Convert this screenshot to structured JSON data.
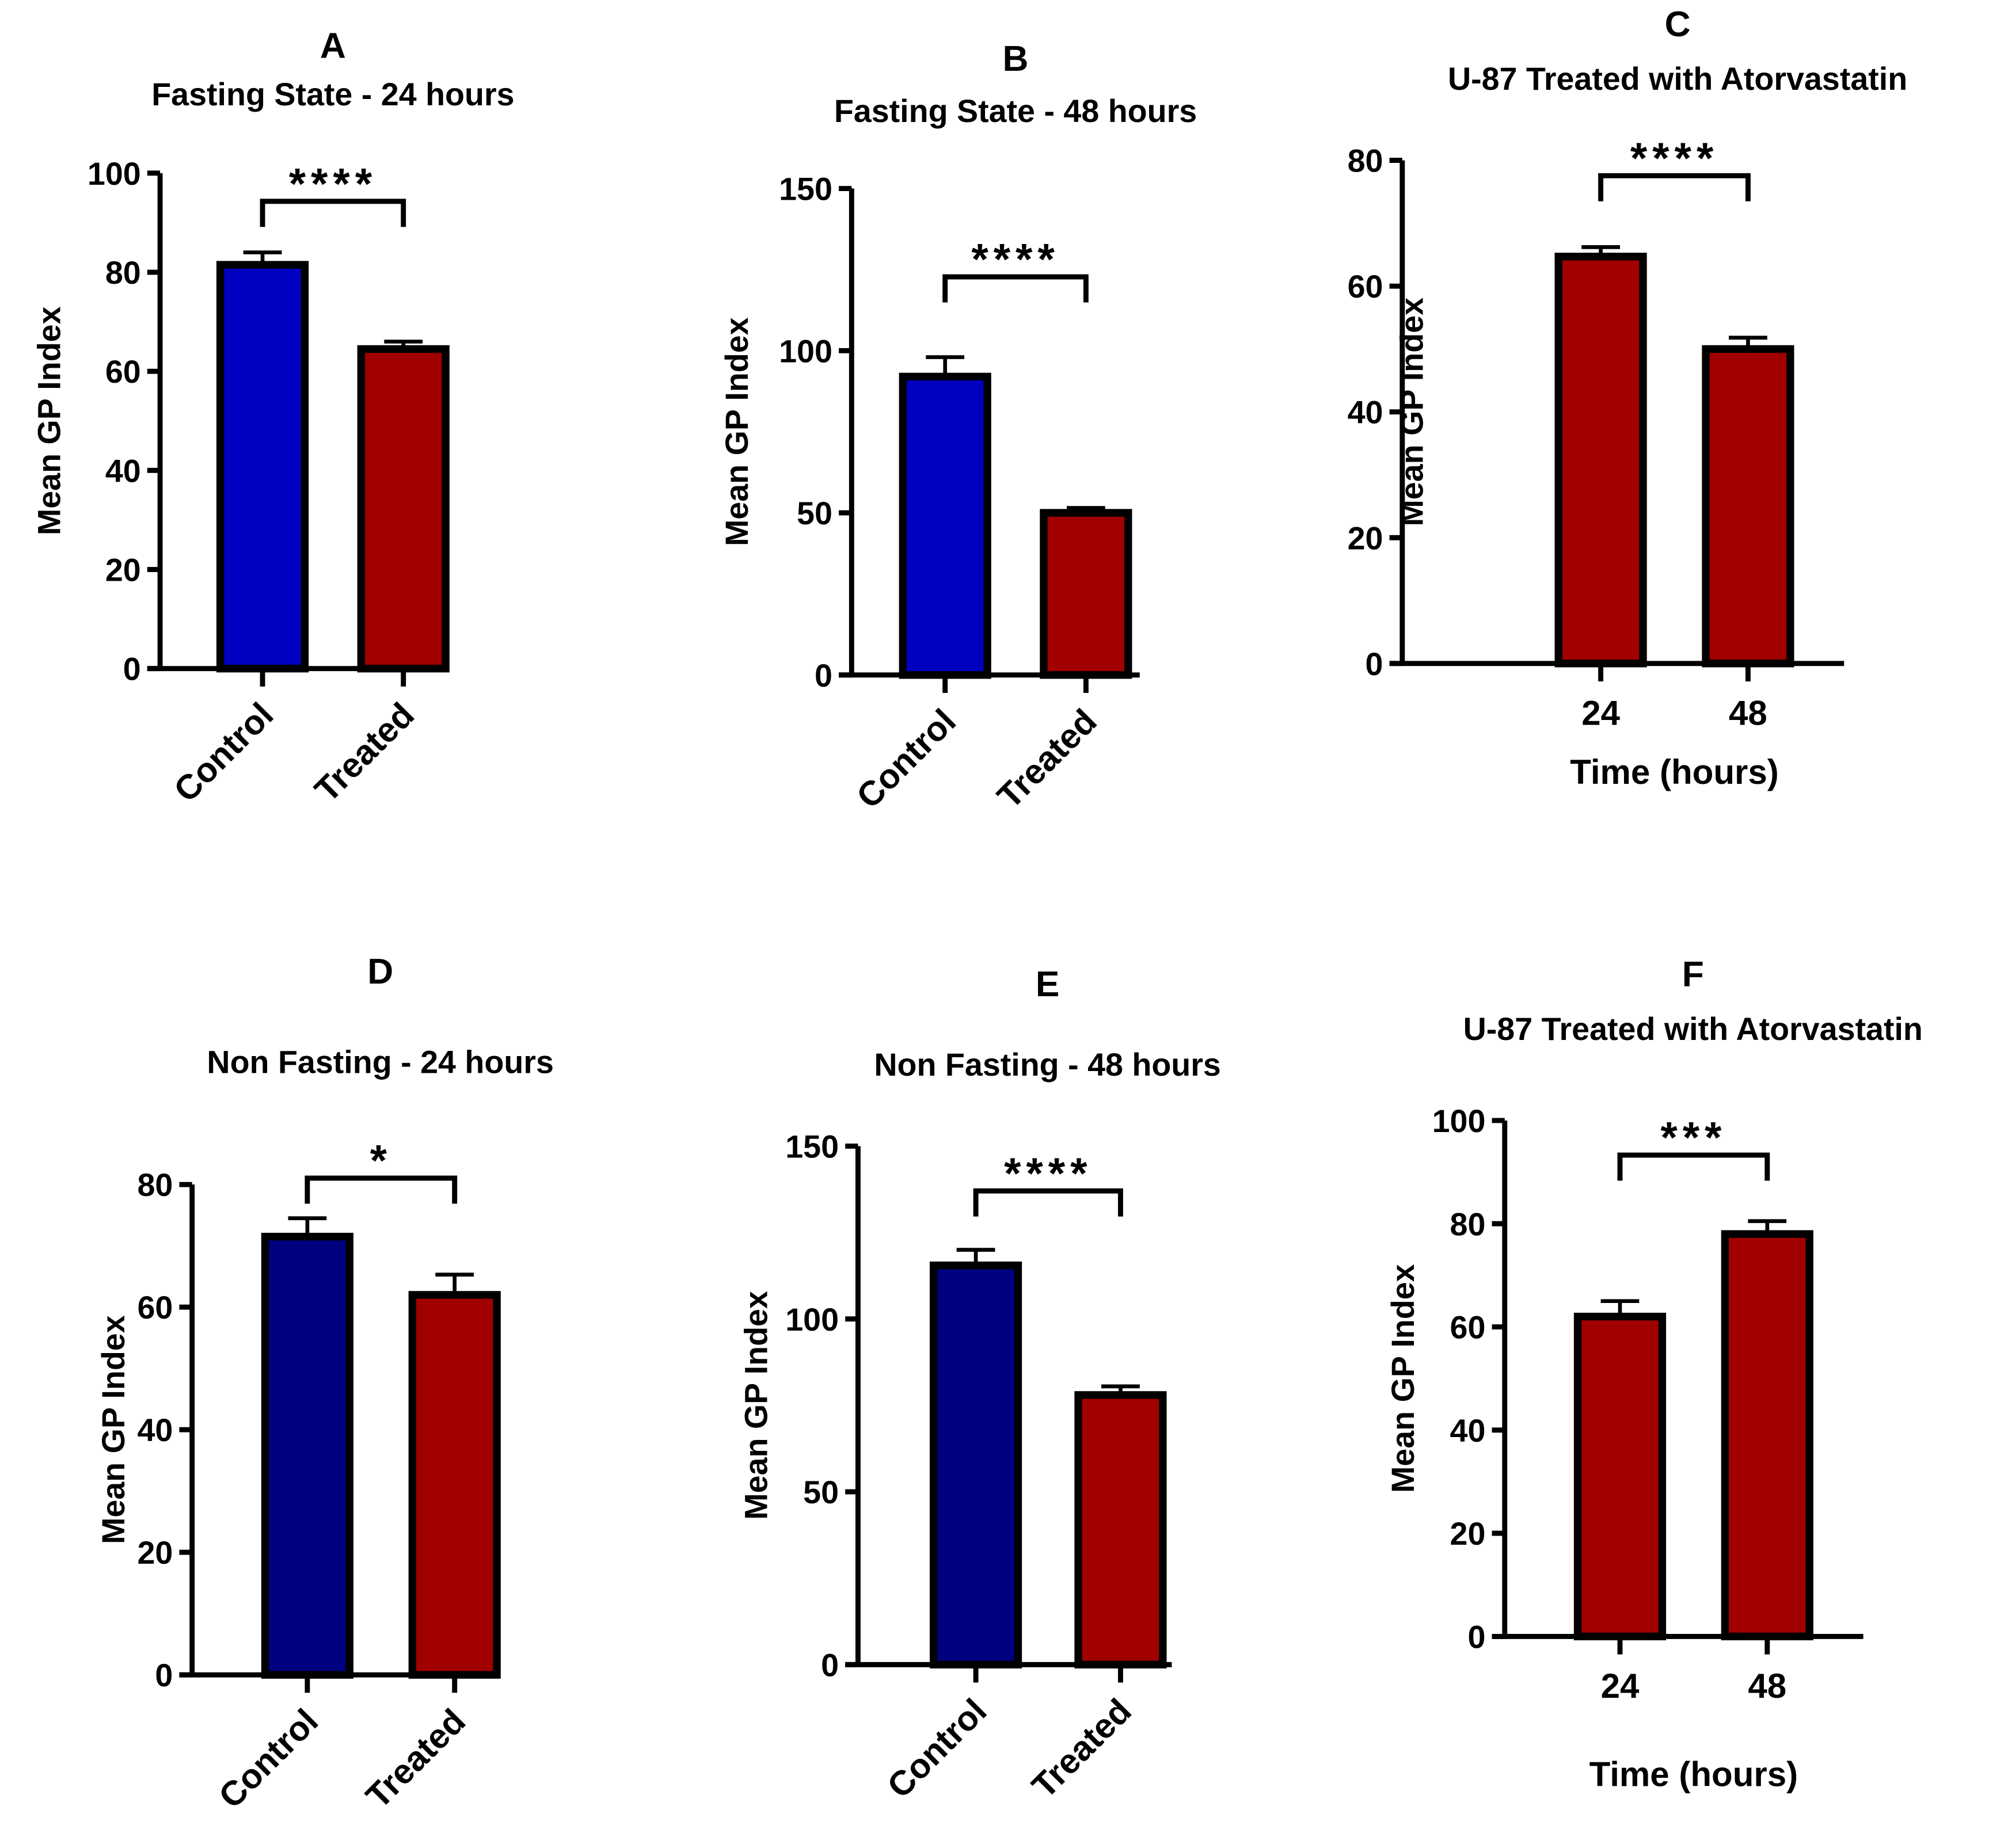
{
  "chart_data": [
    {
      "type": "bar",
      "panel_letter": "A",
      "title": "Fasting State - 24 hours",
      "ylabel": "Mean GP Index",
      "xlabel": "",
      "categories": [
        "Control",
        "Treated"
      ],
      "values": [
        81.5,
        64.5
      ],
      "errors": [
        2.5,
        1.5
      ],
      "colors": [
        "#0000C0",
        "#A00000"
      ],
      "ylim": [
        0,
        100
      ],
      "yticks": [
        0,
        20,
        40,
        60,
        80,
        100
      ],
      "rotate_labels": true,
      "significance": "****"
    },
    {
      "type": "bar",
      "panel_letter": "B",
      "title": "Fasting State - 48 hours",
      "ylabel": "Mean GP Index",
      "xlabel": "",
      "categories": [
        "Control",
        "Treated"
      ],
      "values": [
        92,
        50
      ],
      "errors": [
        6,
        1.5
      ],
      "colors": [
        "#0000C0",
        "#A00000"
      ],
      "ylim": [
        0,
        150
      ],
      "yticks": [
        0,
        50,
        100,
        150
      ],
      "rotate_labels": true,
      "significance": "****"
    },
    {
      "type": "bar",
      "panel_letter": "C",
      "title": "U-87 Treated with Atorvastatin",
      "ylabel": "Mean GP Index",
      "xlabel": "Time (hours)",
      "categories": [
        "24",
        "48"
      ],
      "values": [
        64.7,
        50
      ],
      "errors": [
        1.5,
        1.8
      ],
      "colors": [
        "#A00000",
        "#A00000"
      ],
      "ylim": [
        0,
        80
      ],
      "yticks": [
        0,
        20,
        40,
        60,
        80
      ],
      "rotate_labels": false,
      "significance": "****"
    },
    {
      "type": "bar",
      "panel_letter": "D",
      "title": "Non Fasting - 24 hours",
      "ylabel": "Mean GP Index",
      "xlabel": "",
      "categories": [
        "Control",
        "Treated"
      ],
      "values": [
        71.5,
        62
      ],
      "errors": [
        3,
        3.3
      ],
      "colors": [
        "#000080",
        "#A00000"
      ],
      "ylim": [
        0,
        80
      ],
      "yticks": [
        0,
        20,
        40,
        60,
        80
      ],
      "rotate_labels": true,
      "significance": "*"
    },
    {
      "type": "bar",
      "panel_letter": "E",
      "title": "Non Fasting - 48 hours",
      "ylabel": "Mean GP Index",
      "xlabel": "",
      "categories": [
        "Control",
        "Treated"
      ],
      "values": [
        115.5,
        78
      ],
      "errors": [
        4.5,
        2.5
      ],
      "colors": [
        "#000080",
        "#A00000"
      ],
      "ylim": [
        0,
        150
      ],
      "yticks": [
        0,
        50,
        100,
        150
      ],
      "rotate_labels": true,
      "significance": "****"
    },
    {
      "type": "bar",
      "panel_letter": "F",
      "title": "U-87 Treated with Atorvastatin",
      "ylabel": "Mean GP Index",
      "xlabel": "Time (hours)",
      "categories": [
        "24",
        "48"
      ],
      "values": [
        62,
        78
      ],
      "errors": [
        3,
        2.5
      ],
      "colors": [
        "#A00000",
        "#A00000"
      ],
      "ylim": [
        0,
        100
      ],
      "yticks": [
        0,
        20,
        40,
        60,
        80,
        100
      ],
      "rotate_labels": false,
      "significance": "***"
    }
  ]
}
